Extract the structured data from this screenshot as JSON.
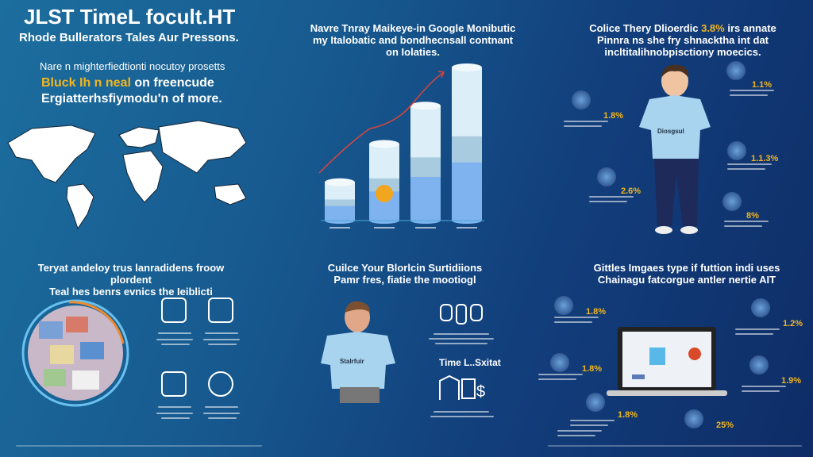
{
  "top_left": {
    "title": "JLST TimeL focult.HT",
    "subtitle": "Rhode Bullerators Tales Aur Pressons.",
    "para_line1": "Nare n mighterfiedtionti nocutoy prosetts",
    "para_highlight": "Bluck Ih n neal",
    "para_line2_rest": " on freencude",
    "para_line3": "Ergiatterhsfiymodu'n of more."
  },
  "top_middle": {
    "heading": [
      "Navre Tnray Maikeye-in Google Monibutic",
      "my Italobatic and bondhecnsall contnant",
      "on Iolaties."
    ],
    "chart_data": {
      "type": "bar",
      "categories": [
        "",
        "",
        "",
        ""
      ],
      "values": [
        1,
        2,
        3,
        4
      ],
      "trend_arrow": true
    }
  },
  "top_right": {
    "heading_a": "Colice Thery Dlioerdic ",
    "heading_pct": "3.8%",
    "heading_b": " irs annate",
    "heading_lines": [
      "Pinnra ns she fry shnacktha int dat",
      "incltitalihnobpisctiony moecics."
    ],
    "stats": [
      "1.1%",
      "1.8%",
      "1.1.3%",
      "2.6%",
      "8%"
    ]
  },
  "bottom_left": {
    "heading": [
      "Teryat andeloy trus lanradidens froow plordent",
      "Teal hes benrs evnics the Ieiblicti"
    ],
    "icons": [
      "lightning-shield-icon",
      "calculator-icon",
      "laptop-icon",
      "face-icon"
    ]
  },
  "bottom_middle": {
    "heading": [
      "Cuilce Your Blorlcin Surtidiions",
      "Pamr fres, fiatie the mootiogl"
    ],
    "label": "Time L..Sxitat"
  },
  "bottom_right": {
    "heading": [
      "Gittles Imgaes type if futtion indi uses",
      "Chainagu fatcorgue antler nertie AIT"
    ],
    "stats": [
      "1.8%",
      "1.2%",
      "1.8%",
      "1.9%",
      "1.8%",
      "25%"
    ]
  },
  "colors": {
    "accent": "#f2b51e",
    "arrow": "#d9453b",
    "bar_light": "#dceef8",
    "bar_mid": "#a9cbe0",
    "bar_base": "#7fb3ef"
  }
}
